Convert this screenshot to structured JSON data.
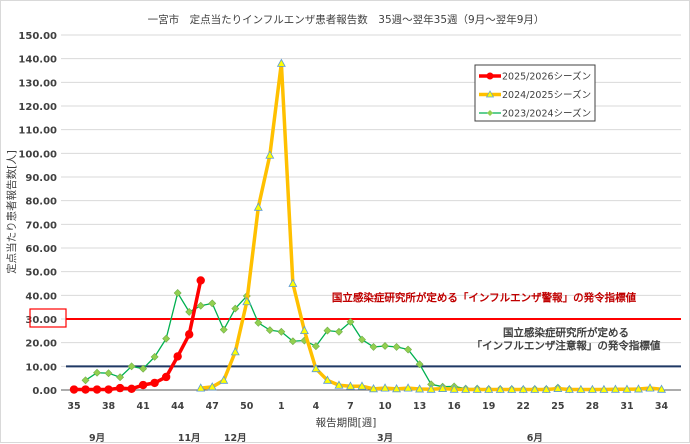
{
  "chart_data": {
    "type": "line",
    "title": "一宮市　定点当たりインフルエンザ患者報告数　35週～翌年35週（9月～翌年9月）",
    "xlabel": "報告期間[週]",
    "ylabel": "定点当たり患者報告数[人]",
    "ylim": [
      0,
      150
    ],
    "yticks": [
      "0.00",
      "10.00",
      "20.00",
      "30.00",
      "40.00",
      "50.00",
      "60.00",
      "70.00",
      "80.00",
      "90.00",
      "100.00",
      "110.00",
      "120.00",
      "130.00",
      "140.00",
      "150.00"
    ],
    "grid": true,
    "legend_position": "top-right",
    "weeks": [
      35,
      36,
      37,
      38,
      39,
      40,
      41,
      42,
      43,
      44,
      45,
      46,
      47,
      48,
      49,
      50,
      51,
      52,
      1,
      2,
      3,
      4,
      5,
      6,
      7,
      8,
      9,
      10,
      11,
      12,
      13,
      14,
      15,
      16,
      17,
      18,
      19,
      20,
      21,
      22,
      23,
      24,
      25,
      26,
      27,
      28,
      29,
      30,
      31,
      32,
      33,
      34
    ],
    "xtick_labels": [
      "35",
      "38",
      "41",
      "44",
      "47",
      "50",
      "1",
      "4",
      "7",
      "10",
      "13",
      "16",
      "19",
      "22",
      "25",
      "28",
      "31",
      "34"
    ],
    "months": [
      {
        "label": "9月",
        "week": 37
      },
      {
        "label": "11月",
        "week": 45
      },
      {
        "label": "12月",
        "week": 49
      },
      {
        "label": "3月",
        "week": 10
      },
      {
        "label": "6月",
        "week": 23
      }
    ],
    "series": [
      {
        "name": "2025/2026シーズン",
        "color": "#ff0000",
        "marker": "circle",
        "values": [
          0.2,
          0.2,
          0.2,
          0.2,
          0.8,
          0.5,
          2.1,
          3.0,
          5.5,
          14.2,
          23.5,
          46.3,
          null,
          null,
          null,
          null,
          null,
          null,
          null,
          null,
          null,
          null,
          null,
          null,
          null,
          null,
          null,
          null,
          null,
          null,
          null,
          null,
          null,
          null,
          null,
          null,
          null,
          null,
          null,
          null,
          null,
          null,
          null,
          null,
          null,
          null,
          null,
          null,
          null,
          null,
          null,
          null
        ]
      },
      {
        "name": "2024/2025シーズン",
        "color": "#ffc000",
        "marker": "triangle",
        "values": [
          null,
          null,
          null,
          null,
          null,
          null,
          null,
          null,
          null,
          null,
          null,
          0.8,
          1.3,
          4.1,
          16.1,
          37.3,
          77.2,
          99.2,
          138.0,
          45.0,
          25.1,
          9.0,
          4.1,
          2.0,
          1.6,
          1.6,
          0.5,
          0.8,
          0.5,
          0.8,
          0.4,
          0.3,
          0.6,
          0.3,
          0.2,
          0.2,
          0.2,
          0.2,
          0.2,
          0.2,
          0.2,
          0.2,
          0.6,
          0.2,
          0.2,
          0.2,
          0.2,
          0.3,
          0.3,
          0.4,
          0.8,
          0.3
        ]
      },
      {
        "name": "2023/2024シーズン",
        "color": "#00b050",
        "marker": "diamond",
        "values": [
          null,
          4.1,
          7.3,
          7.1,
          5.4,
          10.0,
          9.0,
          14.0,
          21.7,
          41.0,
          33.0,
          35.6,
          36.6,
          25.5,
          34.4,
          39.7,
          28.4,
          25.3,
          24.6,
          20.6,
          20.9,
          18.5,
          25.1,
          24.6,
          28.8,
          21.3,
          18.2,
          18.6,
          18.2,
          17.1,
          10.9,
          2.4,
          1.4,
          1.5,
          0.6,
          0.6,
          0.4,
          0.4,
          0.4,
          0.3,
          0.4,
          0.4,
          1.0,
          0.3,
          null,
          null,
          null,
          null,
          null,
          null,
          null,
          null
        ]
      }
    ],
    "reference_lines": [
      {
        "value": 30,
        "color": "#ff0000",
        "label": "国立感染症研究所が定める「インフルエンザ警報」の発令指標値"
      },
      {
        "value": 10,
        "color": "#1f3864",
        "label_line1": "国立感染症研究所が定める",
        "label_line2": "「インフルエンザ注意報」の発令指標値"
      }
    ]
  }
}
